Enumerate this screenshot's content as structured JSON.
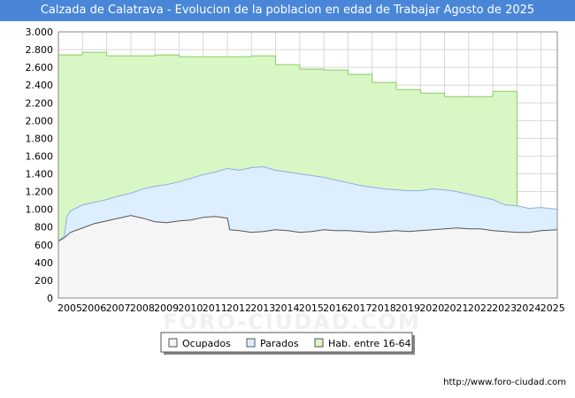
{
  "header": {
    "title": "Calzada de Calatrava - Evolucion de la poblacion en edad de Trabajar Agosto de 2025"
  },
  "footer": {
    "source": "http://www.foro-ciudad.com"
  },
  "watermark": "FORO-CIUDAD.COM",
  "colors": {
    "title_bg": "#4a86d8",
    "hab_fill": "#d9f7c4",
    "hab_line": "#88cc66",
    "parados_fill": "#ddeeff",
    "parados_line": "#8ab0e0",
    "ocupados_fill": "#f5f5f5",
    "ocupados_line": "#555555",
    "grid": "#d8d8d8"
  },
  "chart_data": {
    "type": "area",
    "title": "Calzada de Calatrava - Evolucion de la poblacion en edad de Trabajar Agosto de 2025",
    "xlim": [
      2005,
      2025.67
    ],
    "ylim": [
      0,
      3000
    ],
    "x_ticks": [
      2005,
      2006,
      2007,
      2008,
      2009,
      2010,
      2011,
      2012,
      2013,
      2014,
      2015,
      2016,
      2017,
      2018,
      2019,
      2020,
      2021,
      2022,
      2023,
      2024,
      2025
    ],
    "y_ticks": [
      0,
      200,
      400,
      600,
      800,
      1000,
      1200,
      1400,
      1600,
      1800,
      2000,
      2200,
      2400,
      2600,
      2800,
      3000
    ],
    "y_tick_labels": [
      "0",
      "200",
      "400",
      "600",
      "800",
      "1.000",
      "1.200",
      "1.400",
      "1.600",
      "1.800",
      "2.000",
      "2.200",
      "2.400",
      "2.600",
      "2.800",
      "3.000"
    ],
    "grid": true,
    "legend_position": "bottom-center",
    "series": [
      {
        "name": "Hab. entre 16-64",
        "step": true,
        "points": [
          [
            2005,
            2740
          ],
          [
            2006,
            2770
          ],
          [
            2007,
            2730
          ],
          [
            2008,
            2730
          ],
          [
            2009,
            2740
          ],
          [
            2010,
            2720
          ],
          [
            2011,
            2720
          ],
          [
            2012,
            2720
          ],
          [
            2013,
            2730
          ],
          [
            2014,
            2630
          ],
          [
            2015,
            2580
          ],
          [
            2016,
            2570
          ],
          [
            2017,
            2520
          ],
          [
            2018,
            2430
          ],
          [
            2019,
            2350
          ],
          [
            2020,
            2310
          ],
          [
            2021,
            2270
          ],
          [
            2022,
            2270
          ],
          [
            2023,
            2330
          ]
        ],
        "end_x": 2024
      },
      {
        "name": "Parados",
        "points": [
          [
            2005,
            640
          ],
          [
            2005.25,
            700
          ],
          [
            2005.35,
            920
          ],
          [
            2005.5,
            980
          ],
          [
            2006,
            1050
          ],
          [
            2006.5,
            1080
          ],
          [
            2007,
            1110
          ],
          [
            2007.5,
            1150
          ],
          [
            2008,
            1180
          ],
          [
            2008.5,
            1230
          ],
          [
            2009,
            1260
          ],
          [
            2009.5,
            1280
          ],
          [
            2010,
            1310
          ],
          [
            2010.5,
            1350
          ],
          [
            2011,
            1390
          ],
          [
            2011.5,
            1420
          ],
          [
            2012,
            1460
          ],
          [
            2012.5,
            1440
          ],
          [
            2013,
            1470
          ],
          [
            2013.5,
            1480
          ],
          [
            2014,
            1440
          ],
          [
            2014.5,
            1420
          ],
          [
            2015,
            1400
          ],
          [
            2015.5,
            1380
          ],
          [
            2016,
            1360
          ],
          [
            2016.5,
            1330
          ],
          [
            2017,
            1300
          ],
          [
            2017.5,
            1270
          ],
          [
            2018,
            1250
          ],
          [
            2018.5,
            1230
          ],
          [
            2019,
            1220
          ],
          [
            2019.5,
            1210
          ],
          [
            2020,
            1210
          ],
          [
            2020.5,
            1230
          ],
          [
            2021,
            1220
          ],
          [
            2021.5,
            1200
          ],
          [
            2022,
            1170
          ],
          [
            2022.5,
            1140
          ],
          [
            2023,
            1110
          ],
          [
            2023.5,
            1050
          ],
          [
            2024,
            1040
          ],
          [
            2024.5,
            1010
          ],
          [
            2025,
            1020
          ],
          [
            2025.67,
            1000
          ]
        ]
      },
      {
        "name": "Ocupados",
        "points": [
          [
            2005,
            640
          ],
          [
            2005.25,
            680
          ],
          [
            2005.5,
            740
          ],
          [
            2006,
            790
          ],
          [
            2006.5,
            840
          ],
          [
            2007,
            870
          ],
          [
            2007.5,
            900
          ],
          [
            2008,
            930
          ],
          [
            2008.5,
            900
          ],
          [
            2009,
            860
          ],
          [
            2009.5,
            850
          ],
          [
            2010,
            870
          ],
          [
            2010.5,
            880
          ],
          [
            2011,
            910
          ],
          [
            2011.5,
            920
          ],
          [
            2012,
            900
          ],
          [
            2012.1,
            770
          ],
          [
            2012.5,
            760
          ],
          [
            2013,
            740
          ],
          [
            2013.5,
            750
          ],
          [
            2014,
            770
          ],
          [
            2014.5,
            760
          ],
          [
            2015,
            740
          ],
          [
            2015.5,
            750
          ],
          [
            2016,
            770
          ],
          [
            2016.5,
            760
          ],
          [
            2017,
            760
          ],
          [
            2017.5,
            750
          ],
          [
            2018,
            740
          ],
          [
            2018.5,
            750
          ],
          [
            2019,
            760
          ],
          [
            2019.5,
            750
          ],
          [
            2020,
            760
          ],
          [
            2020.5,
            770
          ],
          [
            2021,
            780
          ],
          [
            2021.5,
            790
          ],
          [
            2022,
            780
          ],
          [
            2022.5,
            780
          ],
          [
            2023,
            760
          ],
          [
            2023.5,
            750
          ],
          [
            2024,
            740
          ],
          [
            2024.5,
            740
          ],
          [
            2025,
            760
          ],
          [
            2025.67,
            770
          ]
        ]
      }
    ]
  }
}
